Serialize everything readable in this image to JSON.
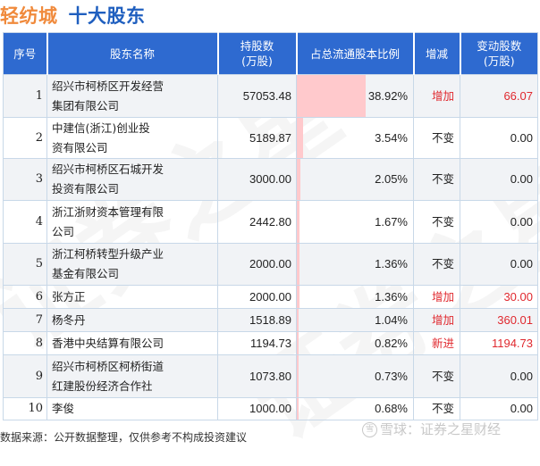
{
  "header": {
    "company": "轻纺城",
    "title": "十大股东"
  },
  "table": {
    "columns": [
      {
        "label": "序号"
      },
      {
        "label": "股东名称"
      },
      {
        "label": "持股数\n(万股)",
        "line1": "持股数",
        "line2": "(万股)"
      },
      {
        "label": "占总流通股本比例"
      },
      {
        "label": "增减"
      },
      {
        "label": "变动股数\n(万股)",
        "line1": "变动股数",
        "line2": "(万股)"
      }
    ],
    "rows": [
      {
        "index": "1",
        "name_line1": "绍兴市柯桥区开发经营",
        "name_line2": "集团有限公司",
        "shares": "57053.48",
        "ratio": "38.92%",
        "ratio_value": 38.92,
        "change_type": "增加",
        "change_shares": "66.07",
        "highlight": true
      },
      {
        "index": "2",
        "name_line1": "中建信(浙江)创业投",
        "name_line2": "资有限公司",
        "shares": "5189.87",
        "ratio": "3.54%",
        "ratio_value": 3.54,
        "change_type": "不变",
        "change_shares": "0.00",
        "highlight": false
      },
      {
        "index": "3",
        "name_line1": "绍兴市柯桥区石城开发",
        "name_line2": "投资有限公司",
        "shares": "3000.00",
        "ratio": "2.05%",
        "ratio_value": 2.05,
        "change_type": "不变",
        "change_shares": "0.00",
        "highlight": false
      },
      {
        "index": "4",
        "name_line1": "浙江浙财资本管理有限",
        "name_line2": "公司",
        "shares": "2442.80",
        "ratio": "1.67%",
        "ratio_value": 1.67,
        "change_type": "不变",
        "change_shares": "0.00",
        "highlight": false
      },
      {
        "index": "5",
        "name_line1": "浙江柯桥转型升级产业",
        "name_line2": "基金有限公司",
        "shares": "2000.00",
        "ratio": "1.36%",
        "ratio_value": 1.36,
        "change_type": "不变",
        "change_shares": "0.00",
        "highlight": false
      },
      {
        "index": "6",
        "name_line1": "张方正",
        "name_line2": "",
        "shares": "2000.00",
        "ratio": "1.36%",
        "ratio_value": 1.36,
        "change_type": "增加",
        "change_shares": "30.00",
        "highlight": true
      },
      {
        "index": "7",
        "name_line1": "杨冬丹",
        "name_line2": "",
        "shares": "1518.89",
        "ratio": "1.04%",
        "ratio_value": 1.04,
        "change_type": "增加",
        "change_shares": "360.01",
        "highlight": true
      },
      {
        "index": "8",
        "name_line1": "香港中央结算有限公司",
        "name_line2": "",
        "shares": "1194.73",
        "ratio": "0.82%",
        "ratio_value": 0.82,
        "change_type": "新进",
        "change_shares": "1194.73",
        "highlight": true
      },
      {
        "index": "9",
        "name_line1": "绍兴市柯桥区柯桥街道",
        "name_line2": "红建股份经济合作社",
        "shares": "1073.80",
        "ratio": "0.73%",
        "ratio_value": 0.73,
        "change_type": "不变",
        "change_shares": "0.00",
        "highlight": false
      },
      {
        "index": "10",
        "name_line1": "李俊",
        "name_line2": "",
        "shares": "1000.00",
        "ratio": "0.68%",
        "ratio_value": 0.68,
        "change_type": "不变",
        "change_shares": "0.00",
        "highlight": false
      }
    ]
  },
  "footer": {
    "source": "数据来源：公开数据整理，仅供参考不构成投资建议",
    "brand_logo": "雪",
    "brand": "雪球：证券之星财经"
  },
  "watermark": {
    "text": "证券之星"
  },
  "colors": {
    "header_bg": "#2e6ad0",
    "company_title": "#f08a3c",
    "section_title": "#1f5fbf",
    "increase_red": "#e0282e",
    "bar_pink": "#ffc9cc",
    "alt_row": "#f1f3f6"
  }
}
